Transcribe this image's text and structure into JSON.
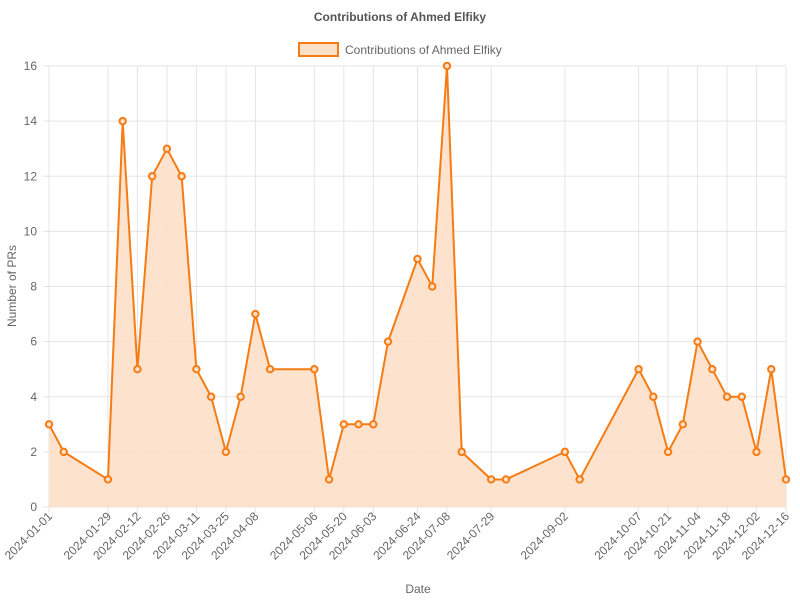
{
  "chart_data": {
    "type": "area",
    "title": "Contributions of Ahmed Elfiky",
    "xlabel": "Date",
    "ylabel": "Number of PRs",
    "ylim": [
      0,
      16
    ],
    "yticks": [
      0,
      2,
      4,
      6,
      8,
      10,
      12,
      14,
      16
    ],
    "grid": true,
    "legend_position": "top-center",
    "x": [
      "2024-01-01",
      "2024-01-08",
      "2024-01-29",
      "2024-02-05",
      "2024-02-12",
      "2024-02-19",
      "2024-02-26",
      "2024-03-04",
      "2024-03-11",
      "2024-03-18",
      "2024-03-25",
      "2024-04-01",
      "2024-04-08",
      "2024-04-15",
      "2024-05-06",
      "2024-05-13",
      "2024-05-20",
      "2024-05-27",
      "2024-06-03",
      "2024-06-10",
      "2024-06-24",
      "2024-07-01",
      "2024-07-08",
      "2024-07-15",
      "2024-07-29",
      "2024-08-05",
      "2024-09-02",
      "2024-09-09",
      "2024-10-07",
      "2024-10-14",
      "2024-10-21",
      "2024-10-28",
      "2024-11-04",
      "2024-11-11",
      "2024-11-18",
      "2024-11-25",
      "2024-12-02",
      "2024-12-09",
      "2024-12-16"
    ],
    "x_tick_labels": [
      "2024-01-01",
      "2024-01-29",
      "2024-02-12",
      "2024-02-26",
      "2024-03-11",
      "2024-03-25",
      "2024-04-08",
      "2024-05-06",
      "2024-05-20",
      "2024-06-03",
      "2024-06-24",
      "2024-07-08",
      "2024-07-29",
      "2024-09-02",
      "2024-10-07",
      "2024-10-21",
      "2024-11-04",
      "2024-11-18",
      "2024-12-02",
      "2024-12-16"
    ],
    "series": [
      {
        "name": "Contributions of Ahmed Elfiky",
        "values": [
          3,
          2,
          1,
          14,
          5,
          12,
          13,
          12,
          5,
          4,
          2,
          4,
          7,
          5,
          5,
          1,
          3,
          3,
          3,
          6,
          9,
          8,
          16,
          2,
          1,
          1,
          2,
          1,
          5,
          4,
          2,
          3,
          6,
          5,
          4,
          4,
          2,
          5,
          1
        ],
        "line_color": "#f57c14",
        "fill_color": "#fde0c8"
      }
    ]
  }
}
